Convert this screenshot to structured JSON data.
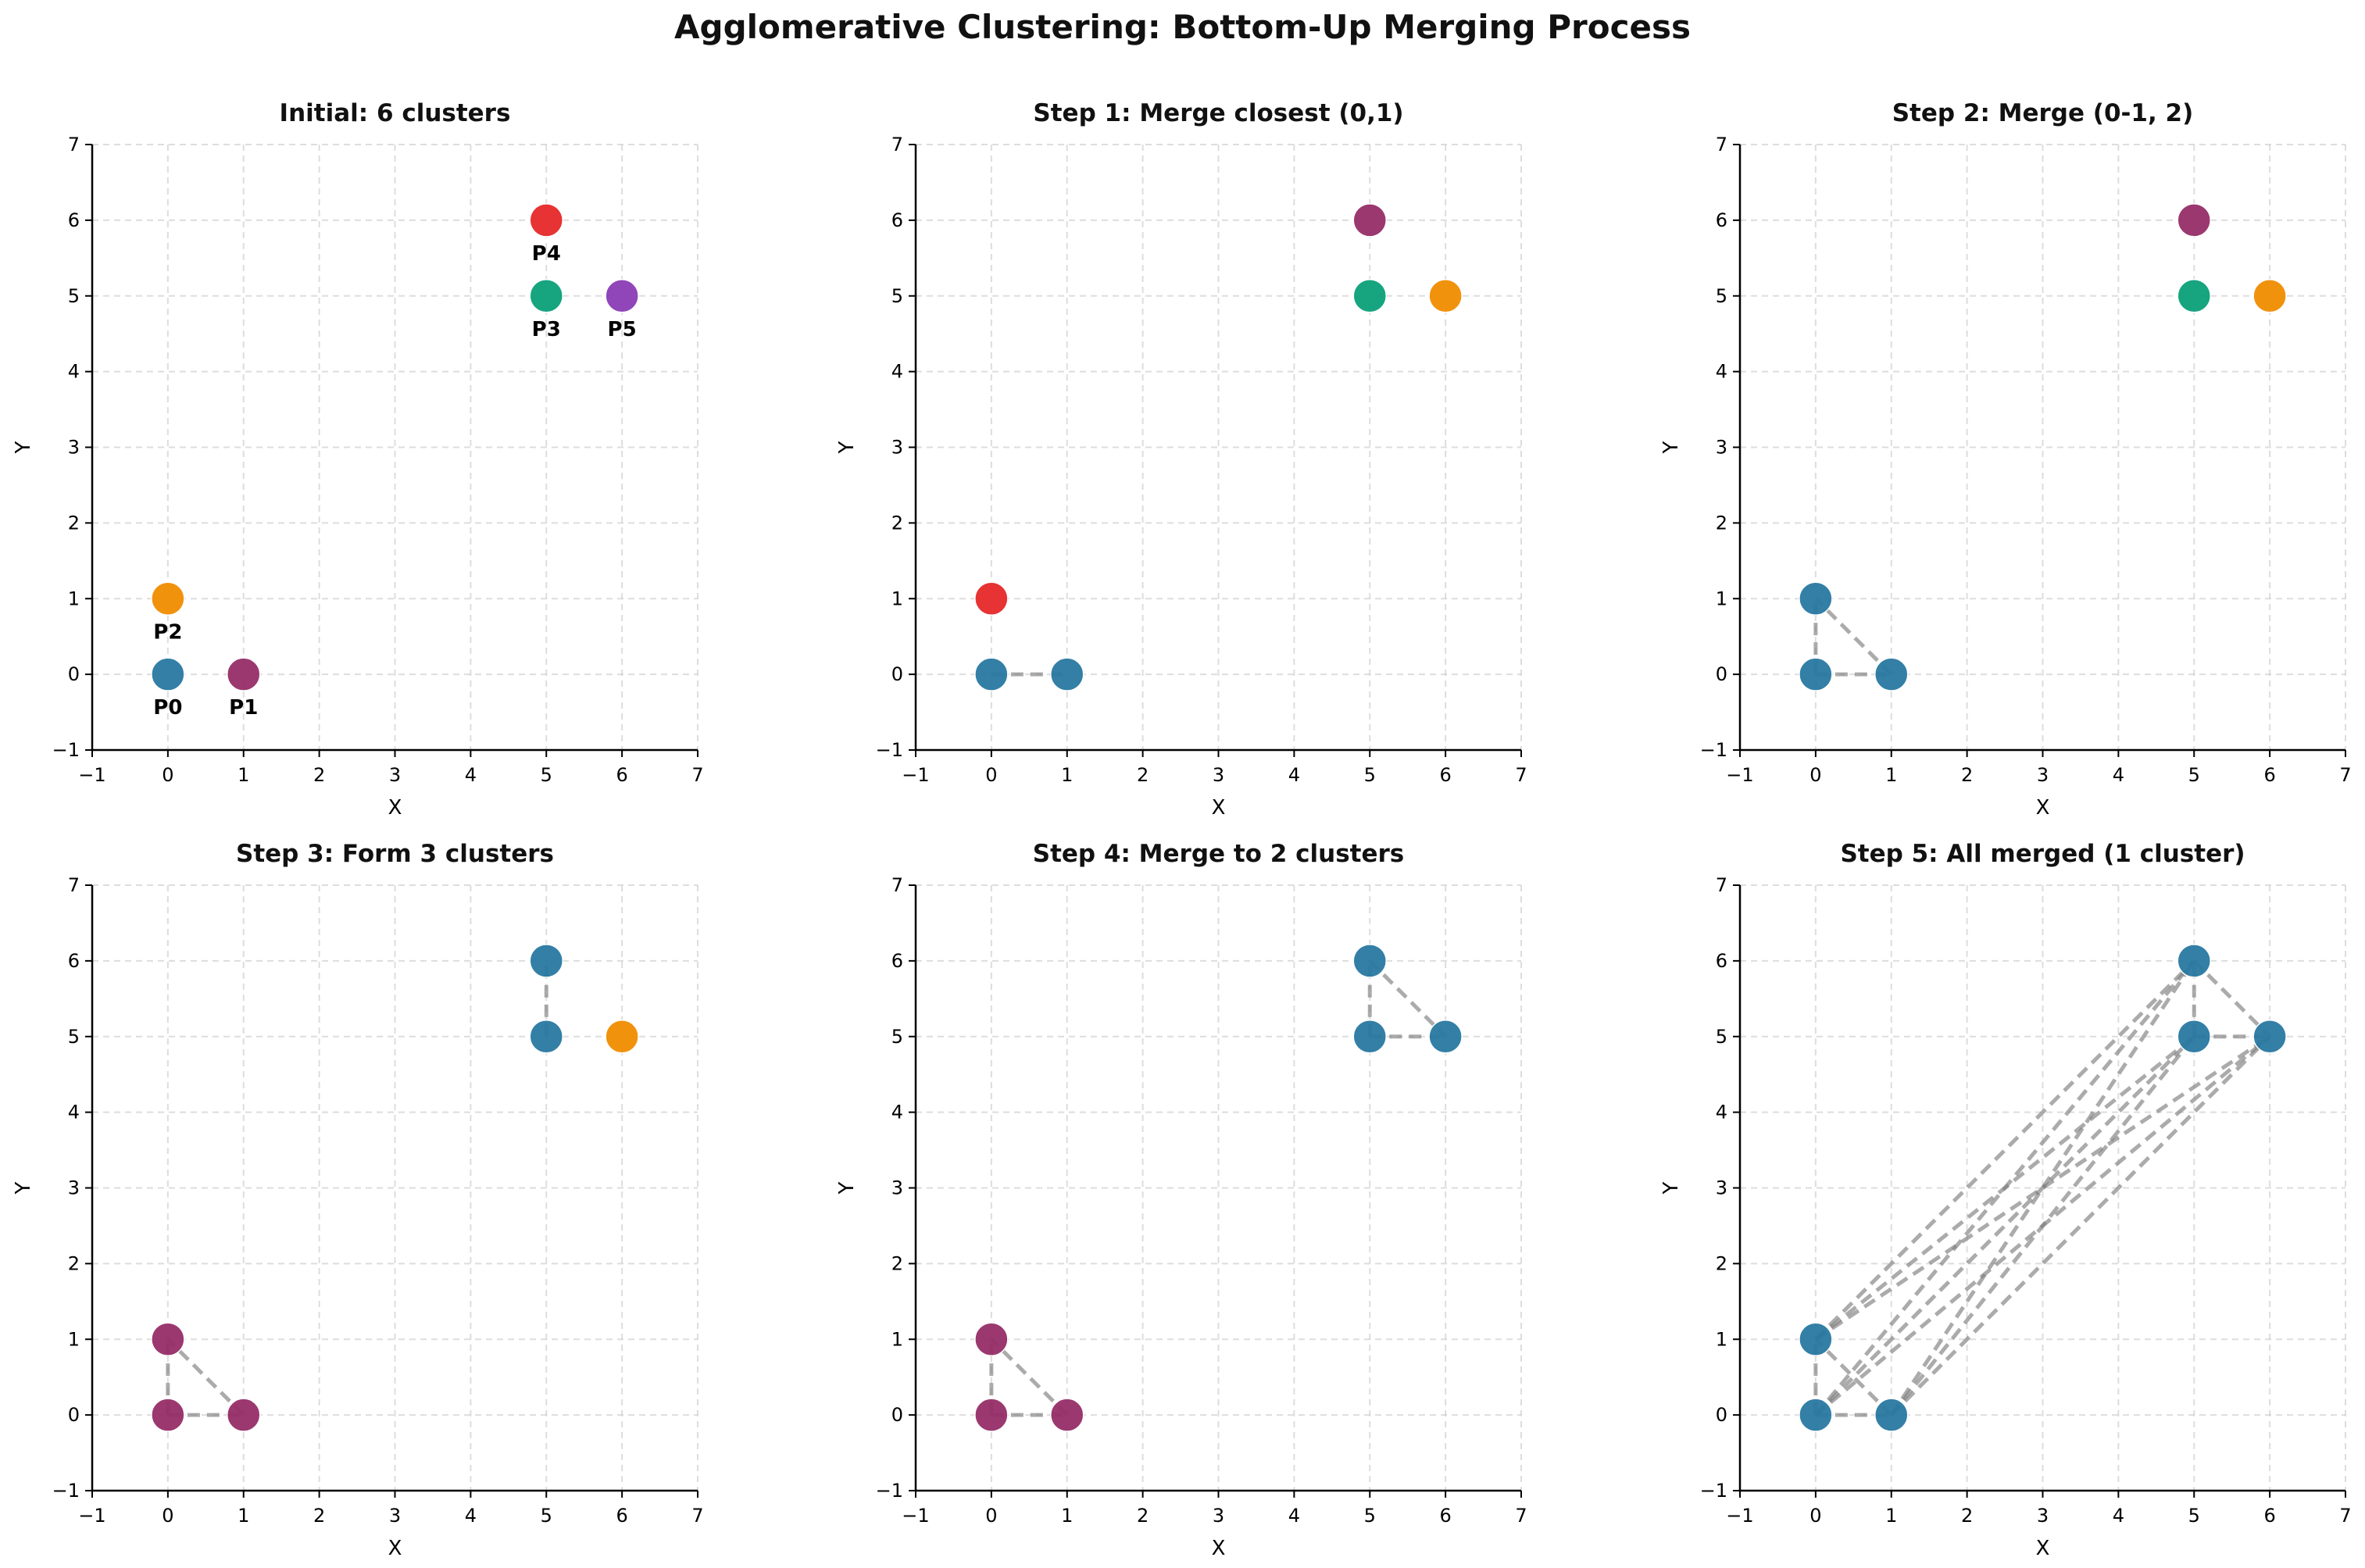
{
  "figure_title": "Agglomerative Clustering: Bottom-Up Merging Process",
  "colors": {
    "blue": "#2878a1",
    "purple_red": "#962d67",
    "orange": "#f08c00",
    "green": "#0aa078",
    "red": "#e62828",
    "violet": "#8a3cb4",
    "link_line": "#7f7f7f",
    "grid": "#cfcfcf"
  },
  "chart_data": [
    {
      "type": "scatter",
      "title": "Initial: 6 clusters",
      "xlabel": "X",
      "ylabel": "Y",
      "xlim": [
        -1,
        7
      ],
      "ylim": [
        -1,
        7
      ],
      "xticks": [
        "−1",
        "0",
        "1",
        "2",
        "3",
        "4",
        "5",
        "6",
        "7"
      ],
      "yticks": [
        "−1",
        "0",
        "1",
        "2",
        "3",
        "4",
        "5",
        "6",
        "7"
      ],
      "grid": true,
      "points": [
        {
          "x": 0,
          "y": 0,
          "color": "#2878a1",
          "label": "P0"
        },
        {
          "x": 1,
          "y": 0,
          "color": "#962d67",
          "label": "P1"
        },
        {
          "x": 0,
          "y": 1,
          "color": "#f08c00",
          "label": "P2"
        },
        {
          "x": 5,
          "y": 5,
          "color": "#0aa078",
          "label": "P3"
        },
        {
          "x": 5,
          "y": 6,
          "color": "#e62828",
          "label": "P4"
        },
        {
          "x": 6,
          "y": 5,
          "color": "#8a3cb4",
          "label": "P5"
        }
      ],
      "links": []
    },
    {
      "type": "scatter",
      "title": "Step 1: Merge closest (0,1)",
      "xlabel": "X",
      "ylabel": "Y",
      "xlim": [
        -1,
        7
      ],
      "ylim": [
        -1,
        7
      ],
      "xticks": [
        "−1",
        "0",
        "1",
        "2",
        "3",
        "4",
        "5",
        "6",
        "7"
      ],
      "yticks": [
        "−1",
        "0",
        "1",
        "2",
        "3",
        "4",
        "5",
        "6",
        "7"
      ],
      "grid": true,
      "points": [
        {
          "x": 0,
          "y": 0,
          "color": "#2878a1"
        },
        {
          "x": 1,
          "y": 0,
          "color": "#2878a1"
        },
        {
          "x": 0,
          "y": 1,
          "color": "#e62828"
        },
        {
          "x": 5,
          "y": 5,
          "color": "#0aa078"
        },
        {
          "x": 5,
          "y": 6,
          "color": "#962d67"
        },
        {
          "x": 6,
          "y": 5,
          "color": "#f08c00"
        }
      ],
      "links": [
        [
          0,
          1
        ]
      ]
    },
    {
      "type": "scatter",
      "title": "Step 2: Merge (0-1, 2)",
      "xlabel": "X",
      "ylabel": "Y",
      "xlim": [
        -1,
        7
      ],
      "ylim": [
        -1,
        7
      ],
      "xticks": [
        "−1",
        "0",
        "1",
        "2",
        "3",
        "4",
        "5",
        "6",
        "7"
      ],
      "yticks": [
        "−1",
        "0",
        "1",
        "2",
        "3",
        "4",
        "5",
        "6",
        "7"
      ],
      "grid": true,
      "points": [
        {
          "x": 0,
          "y": 0,
          "color": "#2878a1"
        },
        {
          "x": 1,
          "y": 0,
          "color": "#2878a1"
        },
        {
          "x": 0,
          "y": 1,
          "color": "#2878a1"
        },
        {
          "x": 5,
          "y": 5,
          "color": "#0aa078"
        },
        {
          "x": 5,
          "y": 6,
          "color": "#962d67"
        },
        {
          "x": 6,
          "y": 5,
          "color": "#f08c00"
        }
      ],
      "links": [
        [
          0,
          1
        ],
        [
          0,
          2
        ],
        [
          1,
          2
        ]
      ]
    },
    {
      "type": "scatter",
      "title": "Step 3: Form 3 clusters",
      "xlabel": "X",
      "ylabel": "Y",
      "xlim": [
        -1,
        7
      ],
      "ylim": [
        -1,
        7
      ],
      "xticks": [
        "−1",
        "0",
        "1",
        "2",
        "3",
        "4",
        "5",
        "6",
        "7"
      ],
      "yticks": [
        "−1",
        "0",
        "1",
        "2",
        "3",
        "4",
        "5",
        "6",
        "7"
      ],
      "grid": true,
      "points": [
        {
          "x": 0,
          "y": 0,
          "color": "#962d67"
        },
        {
          "x": 1,
          "y": 0,
          "color": "#962d67"
        },
        {
          "x": 0,
          "y": 1,
          "color": "#962d67"
        },
        {
          "x": 5,
          "y": 5,
          "color": "#2878a1"
        },
        {
          "x": 5,
          "y": 6,
          "color": "#2878a1"
        },
        {
          "x": 6,
          "y": 5,
          "color": "#f08c00"
        }
      ],
      "links": [
        [
          0,
          1
        ],
        [
          0,
          2
        ],
        [
          1,
          2
        ],
        [
          3,
          4
        ]
      ]
    },
    {
      "type": "scatter",
      "title": "Step 4: Merge to 2 clusters",
      "xlabel": "X",
      "ylabel": "Y",
      "xlim": [
        -1,
        7
      ],
      "ylim": [
        -1,
        7
      ],
      "xticks": [
        "−1",
        "0",
        "1",
        "2",
        "3",
        "4",
        "5",
        "6",
        "7"
      ],
      "yticks": [
        "−1",
        "0",
        "1",
        "2",
        "3",
        "4",
        "5",
        "6",
        "7"
      ],
      "grid": true,
      "points": [
        {
          "x": 0,
          "y": 0,
          "color": "#962d67"
        },
        {
          "x": 1,
          "y": 0,
          "color": "#962d67"
        },
        {
          "x": 0,
          "y": 1,
          "color": "#962d67"
        },
        {
          "x": 5,
          "y": 5,
          "color": "#2878a1"
        },
        {
          "x": 5,
          "y": 6,
          "color": "#2878a1"
        },
        {
          "x": 6,
          "y": 5,
          "color": "#2878a1"
        }
      ],
      "links": [
        [
          0,
          1
        ],
        [
          0,
          2
        ],
        [
          1,
          2
        ],
        [
          3,
          4
        ],
        [
          3,
          5
        ],
        [
          4,
          5
        ]
      ]
    },
    {
      "type": "scatter",
      "title": "Step 5: All merged (1 cluster)",
      "xlabel": "X",
      "ylabel": "Y",
      "xlim": [
        -1,
        7
      ],
      "ylim": [
        -1,
        7
      ],
      "xticks": [
        "−1",
        "0",
        "1",
        "2",
        "3",
        "4",
        "5",
        "6",
        "7"
      ],
      "yticks": [
        "−1",
        "0",
        "1",
        "2",
        "3",
        "4",
        "5",
        "6",
        "7"
      ],
      "grid": true,
      "points": [
        {
          "x": 0,
          "y": 0,
          "color": "#2878a1"
        },
        {
          "x": 1,
          "y": 0,
          "color": "#2878a1"
        },
        {
          "x": 0,
          "y": 1,
          "color": "#2878a1"
        },
        {
          "x": 5,
          "y": 5,
          "color": "#2878a1"
        },
        {
          "x": 5,
          "y": 6,
          "color": "#2878a1"
        },
        {
          "x": 6,
          "y": 5,
          "color": "#2878a1"
        }
      ],
      "links": [
        [
          0,
          1
        ],
        [
          0,
          2
        ],
        [
          0,
          3
        ],
        [
          0,
          4
        ],
        [
          0,
          5
        ],
        [
          1,
          2
        ],
        [
          1,
          3
        ],
        [
          1,
          4
        ],
        [
          1,
          5
        ],
        [
          2,
          3
        ],
        [
          2,
          4
        ],
        [
          2,
          5
        ],
        [
          3,
          4
        ],
        [
          3,
          5
        ],
        [
          4,
          5
        ]
      ]
    }
  ]
}
